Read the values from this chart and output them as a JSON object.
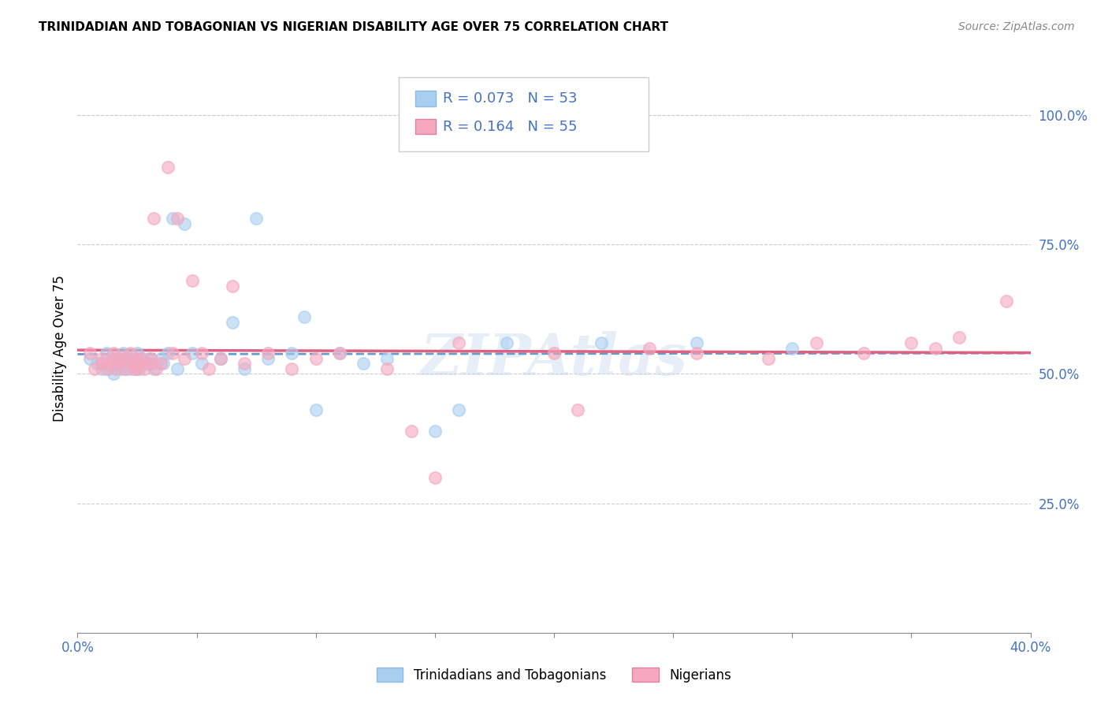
{
  "title": "TRINIDADIAN AND TOBAGONIAN VS NIGERIAN DISABILITY AGE OVER 75 CORRELATION CHART",
  "source": "Source: ZipAtlas.com",
  "ylabel": "Disability Age Over 75",
  "xlim": [
    0.0,
    0.4
  ],
  "ylim": [
    0.0,
    1.1
  ],
  "yticks": [
    0.25,
    0.5,
    0.75,
    1.0
  ],
  "ytick_labels": [
    "25.0%",
    "50.0%",
    "75.0%",
    "100.0%"
  ],
  "xtick_positions": [
    0.0,
    0.05,
    0.1,
    0.15,
    0.2,
    0.25,
    0.3,
    0.35,
    0.4
  ],
  "blue_color": "#A8CEF0",
  "pink_color": "#F5A8BE",
  "trend_blue_color": "#6699CC",
  "trend_pink_color": "#E06080",
  "legend_R_blue": "R = 0.073",
  "legend_N_blue": "N = 53",
  "legend_R_pink": "R = 0.164",
  "legend_N_pink": "N = 55",
  "legend_label_blue": "Trinidadians and Tobagonians",
  "legend_label_pink": "Nigerians",
  "watermark": "ZIPAtlas",
  "blue_scatter_x": [
    0.005,
    0.008,
    0.01,
    0.01,
    0.012,
    0.013,
    0.015,
    0.015,
    0.016,
    0.017,
    0.018,
    0.018,
    0.019,
    0.02,
    0.02,
    0.021,
    0.022,
    0.022,
    0.023,
    0.024,
    0.025,
    0.025,
    0.026,
    0.027,
    0.028,
    0.03,
    0.031,
    0.032,
    0.035,
    0.036,
    0.038,
    0.04,
    0.042,
    0.045,
    0.048,
    0.052,
    0.06,
    0.065,
    0.07,
    0.075,
    0.08,
    0.09,
    0.095,
    0.1,
    0.11,
    0.12,
    0.13,
    0.15,
    0.16,
    0.18,
    0.22,
    0.26,
    0.3
  ],
  "blue_scatter_y": [
    0.53,
    0.52,
    0.51,
    0.52,
    0.54,
    0.51,
    0.53,
    0.5,
    0.52,
    0.53,
    0.51,
    0.52,
    0.54,
    0.53,
    0.51,
    0.52,
    0.51,
    0.53,
    0.52,
    0.51,
    0.54,
    0.52,
    0.51,
    0.53,
    0.52,
    0.53,
    0.52,
    0.51,
    0.53,
    0.52,
    0.54,
    0.8,
    0.51,
    0.79,
    0.54,
    0.52,
    0.53,
    0.6,
    0.51,
    0.8,
    0.53,
    0.54,
    0.61,
    0.43,
    0.54,
    0.52,
    0.53,
    0.39,
    0.43,
    0.56,
    0.56,
    0.56,
    0.55
  ],
  "pink_scatter_x": [
    0.005,
    0.007,
    0.01,
    0.01,
    0.012,
    0.013,
    0.015,
    0.015,
    0.016,
    0.017,
    0.018,
    0.02,
    0.02,
    0.022,
    0.022,
    0.024,
    0.025,
    0.025,
    0.026,
    0.027,
    0.028,
    0.03,
    0.031,
    0.032,
    0.033,
    0.035,
    0.038,
    0.04,
    0.042,
    0.045,
    0.048,
    0.052,
    0.055,
    0.06,
    0.065,
    0.07,
    0.08,
    0.09,
    0.1,
    0.11,
    0.13,
    0.14,
    0.15,
    0.16,
    0.2,
    0.21,
    0.24,
    0.26,
    0.29,
    0.31,
    0.33,
    0.35,
    0.36,
    0.37,
    0.39
  ],
  "pink_scatter_y": [
    0.54,
    0.51,
    0.52,
    0.53,
    0.51,
    0.52,
    0.53,
    0.54,
    0.51,
    0.52,
    0.53,
    0.51,
    0.53,
    0.52,
    0.54,
    0.51,
    0.53,
    0.51,
    0.52,
    0.53,
    0.51,
    0.52,
    0.53,
    0.8,
    0.51,
    0.52,
    0.9,
    0.54,
    0.8,
    0.53,
    0.68,
    0.54,
    0.51,
    0.53,
    0.67,
    0.52,
    0.54,
    0.51,
    0.53,
    0.54,
    0.51,
    0.39,
    0.3,
    0.56,
    0.54,
    0.43,
    0.55,
    0.54,
    0.53,
    0.56,
    0.54,
    0.56,
    0.55,
    0.57,
    0.64
  ]
}
